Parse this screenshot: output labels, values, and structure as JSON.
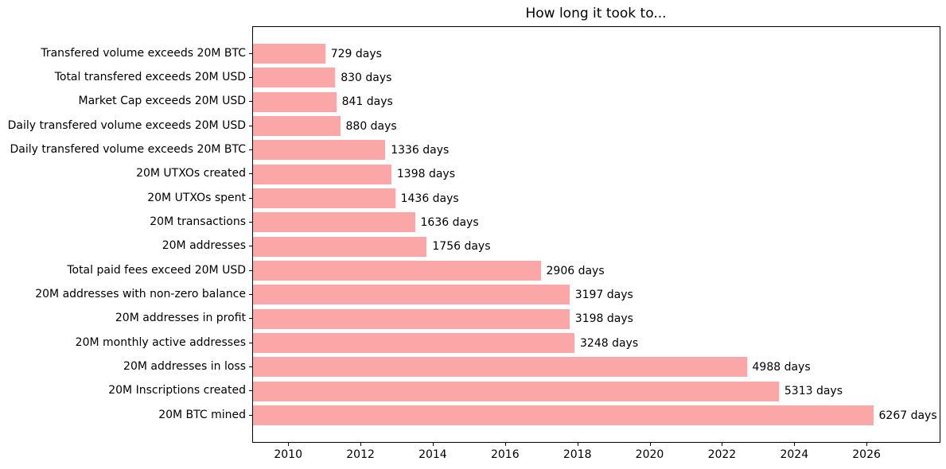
{
  "chart_data": {
    "type": "bar",
    "orientation": "horizontal",
    "title": "How long it took to...",
    "categories": [
      "Transfered volume exceeds 20M BTC",
      "Total transfered exceeds 20M USD",
      "Market Cap exceeds 20M USD",
      "Daily transfered volume exceeds 20M USD",
      "Daily transfered volume exceeds 20M BTC",
      "20M UTXOs created",
      "20M UTXOs spent",
      "20M transactions",
      "20M addresses",
      "Total paid fees exceed 20M USD",
      "20M addresses with non-zero balance",
      "20M addresses in profit",
      "20M monthly active addresses",
      "20M addresses in loss",
      "20M Inscriptions created",
      "20M BTC mined"
    ],
    "values": [
      729,
      830,
      841,
      880,
      1336,
      1398,
      1436,
      1636,
      1756,
      2906,
      3197,
      3198,
      3248,
      4988,
      5313,
      6267
    ],
    "value_unit": "days",
    "value_label_suffix": " days",
    "value_labels": [
      "729 days",
      "830 days",
      "841 days",
      "880 days",
      "1336 days",
      "1398 days",
      "1436 days",
      "1636 days",
      "1756 days",
      "2906 days",
      "3197 days",
      "3198 days",
      "3248 days",
      "4988 days",
      "5313 days",
      "6267 days"
    ],
    "x_axis": {
      "tick_labels": [
        "2010",
        "2012",
        "2014",
        "2016",
        "2018",
        "2020",
        "2022",
        "2024",
        "2026"
      ],
      "ticks": [
        2010,
        2012,
        2014,
        2016,
        2018,
        2020,
        2022,
        2024,
        2026
      ],
      "xlim": [
        2009.005,
        2028.0
      ],
      "bars_start_year": 2009.005,
      "days_per_year": 365.25
    },
    "ylabel": "",
    "xlabel": "",
    "grid": false,
    "legend": false,
    "colors": {
      "bar": "#fca7a7",
      "text": "#000000",
      "spine": "#000000",
      "background": "#ffffff"
    }
  }
}
